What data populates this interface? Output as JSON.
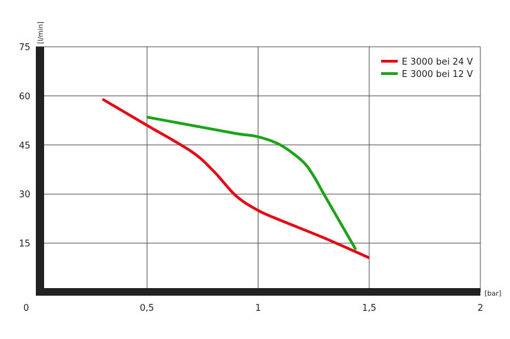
{
  "chart_data": {
    "type": "line",
    "title": "",
    "xlabel": "[bar]",
    "ylabel": "[l/min]",
    "xlim": [
      0,
      2
    ],
    "ylim": [
      0,
      75
    ],
    "x_ticks": [
      0,
      0.5,
      1,
      1.5,
      2
    ],
    "x_tick_labels": [
      "0",
      "0,5",
      "1",
      "1,5",
      "2"
    ],
    "y_ticks": [
      15,
      30,
      45,
      60,
      75
    ],
    "y_tick_labels": [
      "15",
      "30",
      "45",
      "60",
      "75"
    ],
    "grid": true,
    "legend_position": "top-right",
    "series": [
      {
        "name": "E 3000 bei 24 V",
        "color": "#e30613",
        "x": [
          0.3,
          0.5,
          0.7,
          0.8,
          0.9,
          1.0,
          1.1,
          1.3,
          1.5
        ],
        "y": [
          59,
          51,
          43,
          37,
          29.5,
          25,
          22,
          16.5,
          10.5
        ]
      },
      {
        "name": "E 3000 bei 12 V",
        "color": "#1aa31a",
        "x": [
          0.5,
          0.7,
          0.9,
          1.0,
          1.1,
          1.2,
          1.25,
          1.3,
          1.44
        ],
        "y": [
          53.5,
          51,
          48.5,
          47.5,
          45,
          40,
          35.5,
          29.5,
          13
        ]
      }
    ]
  }
}
